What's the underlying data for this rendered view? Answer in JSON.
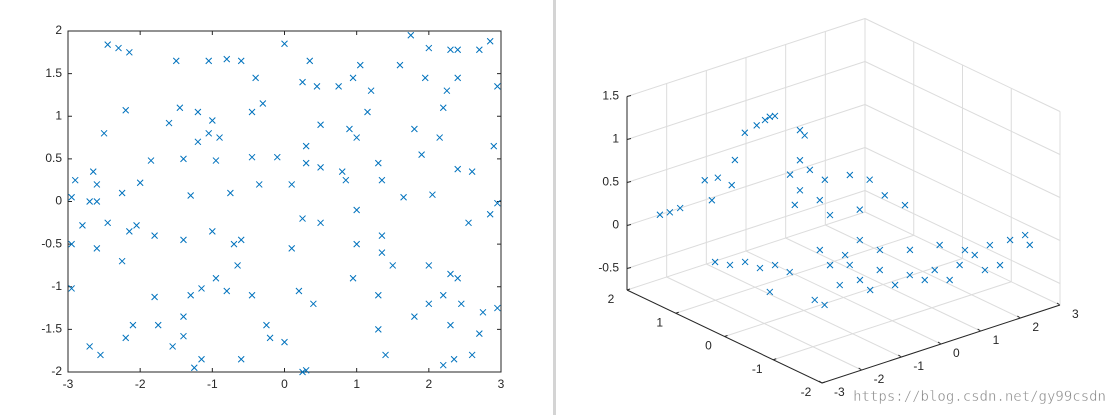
{
  "chart_data": [
    {
      "type": "scatter",
      "color": "#0072bd",
      "marker": "x",
      "xlim": [
        -3,
        3
      ],
      "ylim": [
        -2,
        2
      ],
      "xticks": [
        -3,
        -2,
        -1,
        0,
        1,
        2,
        3
      ],
      "yticks": [
        -2,
        -1.5,
        -1,
        -0.5,
        0,
        0.5,
        1,
        1.5,
        2
      ],
      "x": [
        -2.45,
        -2.3,
        -2.15,
        -1.5,
        -1.05,
        -0.8,
        -0.6,
        0,
        0.35,
        1.05,
        1.6,
        1.75,
        2,
        2.3,
        2.4,
        2.7,
        2.85,
        2.95,
        -0.4,
        0.25,
        0.45,
        0.75,
        0.95,
        1.2,
        1.95,
        2.4,
        2.25,
        -0.3,
        -0.45,
        -1.2,
        -1.45,
        -2.2,
        1.15,
        2.2,
        -2.5,
        -1.6,
        -1,
        -1.05,
        -1.2,
        -0.9,
        0.5,
        0.3,
        0.9,
        1,
        1.8,
        2.15,
        2.9,
        -1.85,
        -1.4,
        -0.95,
        -0.45,
        -0.1,
        0.3,
        0.5,
        0.8,
        1.3,
        1.9,
        2.4,
        -2,
        -2.9,
        -2.65,
        -0.35,
        0.1,
        0.85,
        1.35,
        2.6,
        -2.6,
        -2.25,
        -1.3,
        -0.75,
        1.65,
        2.05,
        2.95,
        -2.95,
        -2.7,
        -2.6,
        -1,
        0.25,
        0.5,
        1,
        1.35,
        2.55,
        2.85,
        -2.8,
        -2.45,
        -2.15,
        -2.05,
        -1.8,
        -2.95,
        -2.6,
        -2.25,
        -1.4,
        -0.7,
        -0.6,
        0.1,
        1,
        1.35,
        1.5,
        2,
        2.3,
        2.4,
        0.95,
        -0.95,
        -0.45,
        -0.65,
        -0.8,
        0.4,
        1.3,
        -2.95,
        -1.8,
        -1.3,
        -1.15,
        0.2,
        2,
        2.2,
        2.45,
        2.75,
        2.95,
        -2.1,
        -1.75,
        -1.4,
        -0.25,
        1.3,
        1.8,
        2.3,
        2.7,
        -2.7,
        -2.55,
        -2.2,
        -1.55,
        -1.4,
        -1.15,
        -0.6,
        0.25,
        0.3,
        1.4,
        2.6,
        2.2,
        -1.25,
        2.35,
        0,
        -0.2
      ],
      "values": [
        1.84,
        1.8,
        1.75,
        1.65,
        1.65,
        1.67,
        1.65,
        1.85,
        1.65,
        1.6,
        1.6,
        1.95,
        1.8,
        1.78,
        1.78,
        1.78,
        1.88,
        1.35,
        1.45,
        1.4,
        1.35,
        1.35,
        1.45,
        1.3,
        1.45,
        1.45,
        1.3,
        1.15,
        1.05,
        1.05,
        1.1,
        1.07,
        1.05,
        1.1,
        0.8,
        0.92,
        0.95,
        0.8,
        0.7,
        0.75,
        0.9,
        0.65,
        0.85,
        0.75,
        0.85,
        0.75,
        0.65,
        0.48,
        0.5,
        0.48,
        0.52,
        0.52,
        0.45,
        0.4,
        0.35,
        0.45,
        0.55,
        0.38,
        0.22,
        0.25,
        0.35,
        0.2,
        0.2,
        0.25,
        0.25,
        0.35,
        0.2,
        0.1,
        0.07,
        0.1,
        0.05,
        0.08,
        -0.02,
        0.05,
        0,
        0,
        -0.35,
        -0.2,
        -0.25,
        -0.1,
        -0.4,
        -0.25,
        -0.15,
        -0.28,
        -0.25,
        -0.35,
        -0.28,
        -0.4,
        -0.5,
        -0.55,
        -0.7,
        -0.45,
        -0.5,
        -0.45,
        -0.55,
        -0.5,
        -0.6,
        -0.75,
        -0.75,
        -0.85,
        -0.9,
        -0.9,
        -0.9,
        -1.1,
        -0.75,
        -1.05,
        -1.2,
        -1.1,
        -1.02,
        -1.12,
        -1.1,
        -1.02,
        -1.05,
        -1.2,
        -1.1,
        -1.2,
        -1.3,
        -1.25,
        -1.45,
        -1.45,
        -1.35,
        -1.45,
        -1.5,
        -1.35,
        -1.45,
        -1.55,
        -1.7,
        -1.8,
        -1.6,
        -1.7,
        -1.58,
        -1.85,
        -1.85,
        -2,
        -1.98,
        -1.8,
        -1.8,
        -1.92,
        -1.95,
        -1.85,
        -1.65,
        -1.6
      ]
    },
    {
      "type": "scatter3d",
      "color": "#0072bd",
      "marker": "x",
      "grid": true,
      "xlim": [
        -3,
        3
      ],
      "ylim": [
        -2,
        2
      ],
      "zlim": [
        -0.75,
        1.5
      ],
      "xticks": [
        -3,
        -2,
        -1,
        0,
        1,
        2,
        3
      ],
      "yticks": [
        -2,
        -1,
        0,
        1,
        2
      ],
      "zticks": [
        -0.5,
        0,
        0.5,
        1,
        1.5
      ],
      "x": [
        -2.17,
        -1.92,
        -1.66,
        -1.04,
        -0.86,
        -0.71,
        -0.36,
        -0.28,
        -0.03,
        0.27,
        0.48,
        0.6,
        0.73,
        1.36,
        1.48,
        1.36,
        1.61,
        1.11,
        1.36,
        1.23,
        1.86,
        -1.48,
        -1.35,
        -1.03,
        -1,
        -0.68,
        -1.6,
        -0.68,
        -1.18,
        -1.19,
        -0.34,
        0.44,
        0.12,
        -0.04,
        0.73,
        0.49,
        1.02,
        1.09,
        1.55,
        1.46,
        2.08,
        2.62,
        1.81,
        2.27,
        2.65,
        2.41,
        2.68,
        2.3,
        1.28,
        1.06,
        1.81,
        1.36,
        1.37,
        0.68,
        0.14,
        0.46,
        0.16,
        0.66,
        1.04,
        -0.34,
        0.41,
        1.55,
        -0.47
      ],
      "y": [
        2,
        2,
        2,
        2,
        2,
        2,
        2,
        2,
        2,
        2,
        2,
        2,
        2,
        2,
        2,
        2,
        2,
        2,
        2,
        2,
        2,
        1.43,
        1.23,
        1.18,
        0.9,
        0.85,
        0.21,
        0.55,
        -0.37,
        -0.58,
        -0.2,
        0.23,
        -0.24,
        -0.58,
        -0.15,
        -0.66,
        -0.53,
        -0.78,
        -0.61,
        -0.99,
        -0.69,
        -0.56,
        -1.53,
        -1.57,
        -1.57,
        -1.86,
        -1.03,
        -1.03,
        -1.45,
        -1.11,
        0.11,
        0.36,
        0.78,
        0.52,
        0.39,
        0.86,
        0,
        0,
        0,
        0,
        0,
        0,
        0
      ],
      "values": [
        0,
        -0.01,
        0,
        0.23,
        -0.03,
        0.21,
        0.07,
        0.35,
        0.63,
        0.67,
        0.7,
        0.72,
        0.71,
        0.45,
        0.37,
        0.1,
        -0.05,
        -0.03,
        -0.25,
        -0.4,
        -0.44,
        -0.5,
        -0.5,
        -0.5,
        -0.5,
        -0.5,
        -0.5,
        -0.5,
        -0.5,
        -0.5,
        -0.5,
        -0.5,
        -0.5,
        -0.5,
        -0.5,
        -0.5,
        -0.5,
        -0.5,
        -0.5,
        -0.5,
        -0.5,
        -0.5,
        0,
        0,
        0,
        0,
        -0.5,
        -0.5,
        0,
        0,
        -0.5,
        -0.5,
        -0.5,
        -0.5,
        -0.5,
        -0.5,
        0.65,
        0.52,
        0.28,
        0.26,
        0.21,
        0.09,
        0.69
      ]
    }
  ],
  "watermark": "https://blog.csdn.net/gy99csdn"
}
